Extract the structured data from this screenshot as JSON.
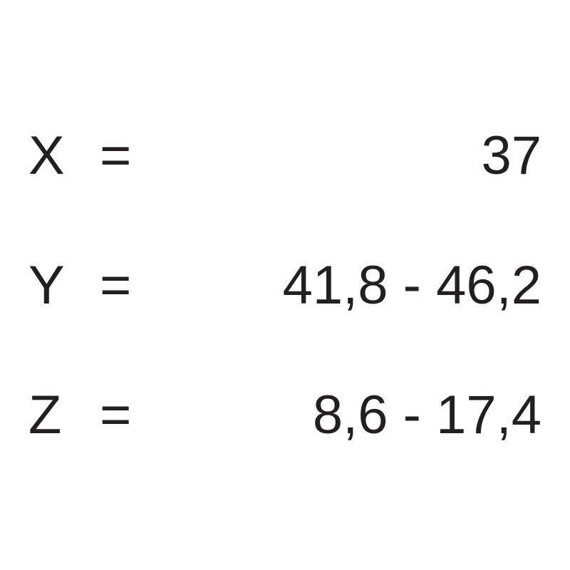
{
  "rows": [
    {
      "variable": "X",
      "equals": "=",
      "value": "37"
    },
    {
      "variable": "Y",
      "equals": "=",
      "value": "41,8 - 46,2"
    },
    {
      "variable": "Z",
      "equals": "=",
      "value": "8,6 - 17,4"
    }
  ],
  "style": {
    "background_color": "#ffffff",
    "text_color": "#231f20",
    "font_size": 76,
    "font_family": "Arial, Helvetica, sans-serif",
    "row_gap": 95,
    "container_width": 720
  }
}
